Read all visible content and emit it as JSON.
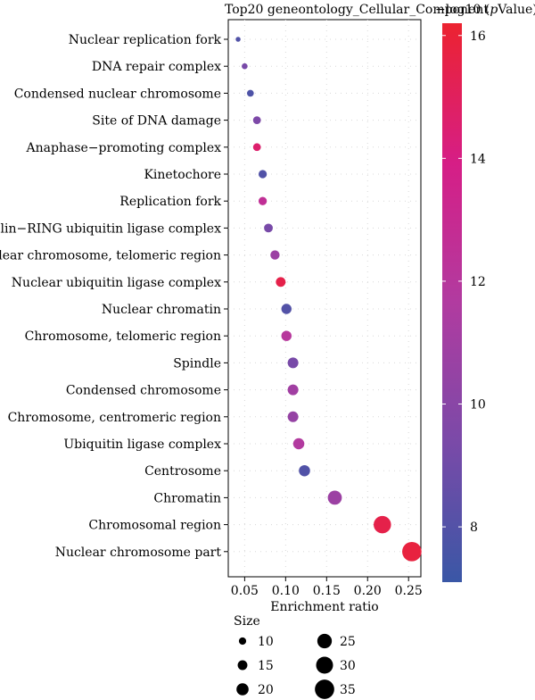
{
  "chart_data": {
    "type": "scatter",
    "title": "Top20 geneontology_Cellular_Component",
    "xlabel": "Enrichment ratio",
    "xlim": [
      0.03,
      0.265
    ],
    "xticks": [
      "0.05",
      "0.10",
      "0.15",
      "0.20",
      "0.25"
    ],
    "xtick_values": [
      0.05,
      0.1,
      0.15,
      0.2,
      0.25
    ],
    "categories": [
      "Nuclear replication fork",
      "DNA repair complex",
      "Condensed nuclear chromosome",
      "Site of DNA damage",
      "Anaphase−promoting complex",
      "Kinetochore",
      "Replication fork",
      "Cullin−RING ubiquitin ligase complex",
      "Nuclear chromosome, telomeric region",
      "Nuclear ubiquitin ligase complex",
      "Nuclear chromatin",
      "Chromosome, telomeric region",
      "Spindle",
      "Condensed chromosome",
      "Chromosome, centromeric region",
      "Ubiquitin ligase complex",
      "Centrosome",
      "Chromatin",
      "Chromosomal region",
      "Nuclear chromosome part"
    ],
    "points": [
      {
        "term": "Nuclear replication fork",
        "x": 0.042,
        "neglog10p": 7.9,
        "size": 5
      },
      {
        "term": "DNA repair complex",
        "x": 0.05,
        "neglog10p": 9.3,
        "size": 7
      },
      {
        "term": "Condensed nuclear chromosome",
        "x": 0.057,
        "neglog10p": 7.8,
        "size": 9
      },
      {
        "term": "Site of DNA damage",
        "x": 0.065,
        "neglog10p": 9.5,
        "size": 11
      },
      {
        "term": "Anaphase−promoting complex",
        "x": 0.065,
        "neglog10p": 14.6,
        "size": 11
      },
      {
        "term": "Kinetochore",
        "x": 0.072,
        "neglog10p": 7.9,
        "size": 12
      },
      {
        "term": "Replication fork",
        "x": 0.072,
        "neglog10p": 12.6,
        "size": 12
      },
      {
        "term": "Cullin−RING ubiquitin ligase complex",
        "x": 0.079,
        "neglog10p": 9.3,
        "size": 13
      },
      {
        "term": "Nuclear chromosome, telomeric region",
        "x": 0.087,
        "neglog10p": 10.8,
        "size": 14
      },
      {
        "term": "Nuclear ubiquitin ligase complex",
        "x": 0.094,
        "neglog10p": 15.5,
        "size": 15
      },
      {
        "term": "Nuclear chromatin",
        "x": 0.101,
        "neglog10p": 8.0,
        "size": 16
      },
      {
        "term": "Chromosome, telomeric region",
        "x": 0.101,
        "neglog10p": 12.0,
        "size": 16
      },
      {
        "term": "Spindle",
        "x": 0.109,
        "neglog10p": 9.3,
        "size": 17
      },
      {
        "term": "Condensed chromosome",
        "x": 0.109,
        "neglog10p": 11.0,
        "size": 17
      },
      {
        "term": "Chromosome, centromeric region",
        "x": 0.109,
        "neglog10p": 10.5,
        "size": 17
      },
      {
        "term": "Ubiquitin ligase complex",
        "x": 0.116,
        "neglog10p": 11.7,
        "size": 18
      },
      {
        "term": "Centrosome",
        "x": 0.123,
        "neglog10p": 7.9,
        "size": 18
      },
      {
        "term": "Chromatin",
        "x": 0.16,
        "neglog10p": 10.8,
        "size": 24
      },
      {
        "term": "Chromosomal region",
        "x": 0.218,
        "neglog10p": 15.5,
        "size": 31
      },
      {
        "term": "Nuclear chromosome part",
        "x": 0.254,
        "neglog10p": 15.8,
        "size": 35
      }
    ],
    "color_legend": {
      "title": "−log10 (",
      "title_italic": "p",
      "title_suffix": "Value)",
      "range": [
        7.1,
        16.2
      ],
      "ticks": [
        8,
        10,
        12,
        14,
        16
      ],
      "tick_labels": [
        "8",
        "10",
        "12",
        "14",
        "16"
      ],
      "colors": [
        "#3a57a6",
        "#7a4aa8",
        "#b13ba0",
        "#d61e86",
        "#ec2330"
      ]
    },
    "size_legend": {
      "title": "Size",
      "values": [
        10,
        15,
        20,
        25,
        30,
        35
      ],
      "labels": [
        "10",
        "15",
        "20",
        "25",
        "30",
        "35"
      ]
    },
    "grid": true,
    "legend_placement": "right and bottom"
  }
}
